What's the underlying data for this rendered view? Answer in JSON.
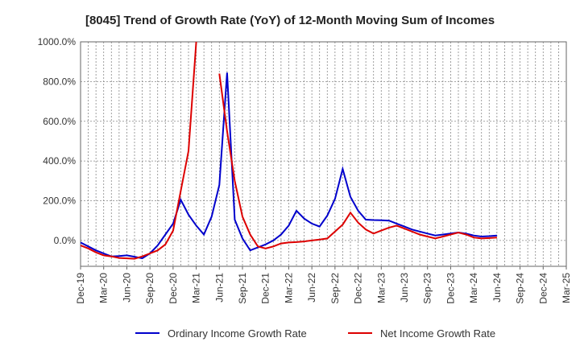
{
  "chart_data": {
    "type": "line",
    "title": "[8045]  Trend of Growth Rate (YoY) of 12-Month Moving Sum of Incomes",
    "xlabel": "",
    "ylabel": "",
    "ylim": [
      -130,
      1000
    ],
    "y_ticks": [
      0,
      200,
      400,
      600,
      800,
      1000
    ],
    "y_tick_labels": [
      "0.0%",
      "200.0%",
      "400.0%",
      "600.0%",
      "800.0%",
      "1000.0%"
    ],
    "x_tick_labels": [
      "Dec-19",
      "Mar-20",
      "Jun-20",
      "Sep-20",
      "Dec-20",
      "Mar-21",
      "Jun-21",
      "Sep-21",
      "Dec-21",
      "Mar-22",
      "Jun-22",
      "Sep-22",
      "Dec-22",
      "Mar-23",
      "Jun-23",
      "Sep-23",
      "Dec-23",
      "Mar-24",
      "Jun-24",
      "Sep-24",
      "Dec-24",
      "Mar-25"
    ],
    "grid": true,
    "legend_position": "bottom",
    "series": [
      {
        "name": "Ordinary Income Growth Rate",
        "color": "#0000cc",
        "points": [
          [
            0,
            -10
          ],
          [
            1,
            -30
          ],
          [
            2,
            -50
          ],
          [
            3,
            -65
          ],
          [
            4,
            -80
          ],
          [
            5,
            -78
          ],
          [
            6,
            -75
          ],
          [
            7,
            -82
          ],
          [
            8,
            -90
          ],
          [
            9,
            -65
          ],
          [
            10,
            -25
          ],
          [
            11,
            30
          ],
          [
            12,
            85
          ],
          [
            13,
            205
          ],
          [
            14,
            130
          ],
          [
            15,
            75
          ],
          [
            16,
            30
          ],
          [
            17,
            120
          ],
          [
            18,
            280
          ],
          [
            19,
            845
          ],
          [
            20,
            105
          ],
          [
            21,
            10
          ],
          [
            22,
            -50
          ],
          [
            23,
            -35
          ],
          [
            24,
            -20
          ],
          [
            25,
            0
          ],
          [
            26,
            30
          ],
          [
            27,
            75
          ],
          [
            28,
            150
          ],
          [
            29,
            110
          ],
          [
            30,
            85
          ],
          [
            31,
            70
          ],
          [
            32,
            125
          ],
          [
            33,
            210
          ],
          [
            34,
            360
          ],
          [
            35,
            220
          ],
          [
            36,
            150
          ],
          [
            37,
            105
          ],
          [
            38,
            103
          ],
          [
            39,
            102
          ],
          [
            40,
            100
          ],
          [
            41,
            85
          ],
          [
            42,
            70
          ],
          [
            43,
            55
          ],
          [
            44,
            45
          ],
          [
            45,
            35
          ],
          [
            46,
            25
          ],
          [
            47,
            30
          ],
          [
            48,
            35
          ],
          [
            49,
            40
          ],
          [
            50,
            35
          ],
          [
            51,
            25
          ],
          [
            52,
            20
          ],
          [
            53,
            22
          ],
          [
            54,
            25
          ]
        ]
      },
      {
        "name": "Net Income Growth Rate",
        "color": "#dd0000",
        "points": [
          [
            0,
            -25
          ],
          [
            1,
            -40
          ],
          [
            2,
            -60
          ],
          [
            3,
            -75
          ],
          [
            4,
            -80
          ],
          [
            5,
            -88
          ],
          [
            6,
            -90
          ],
          [
            7,
            -92
          ],
          [
            8,
            -80
          ],
          [
            9,
            -65
          ],
          [
            10,
            -50
          ],
          [
            11,
            -20
          ],
          [
            12,
            50
          ],
          [
            13,
            250
          ],
          [
            14,
            450
          ],
          [
            15,
            1000
          ]
        ],
        "segments": [
          [
            [
              15,
              1000
            ]
          ],
          [
            [
              18,
              840
            ],
            [
              19,
              550
            ],
            [
              20,
              300
            ],
            [
              21,
              120
            ],
            [
              22,
              30
            ],
            [
              23,
              -30
            ],
            [
              24,
              -40
            ],
            [
              25,
              -30
            ],
            [
              26,
              -15
            ],
            [
              27,
              -10
            ],
            [
              28,
              -8
            ],
            [
              29,
              -5
            ],
            [
              30,
              0
            ],
            [
              31,
              5
            ],
            [
              32,
              10
            ],
            [
              33,
              45
            ],
            [
              34,
              80
            ],
            [
              35,
              140
            ],
            [
              36,
              90
            ],
            [
              37,
              55
            ],
            [
              38,
              35
            ],
            [
              39,
              50
            ],
            [
              40,
              65
            ],
            [
              41,
              75
            ],
            [
              42,
              60
            ],
            [
              43,
              45
            ],
            [
              44,
              30
            ],
            [
              45,
              20
            ],
            [
              46,
              10
            ],
            [
              47,
              20
            ],
            [
              48,
              30
            ],
            [
              49,
              40
            ],
            [
              50,
              30
            ],
            [
              51,
              15
            ],
            [
              52,
              10
            ],
            [
              53,
              12
            ],
            [
              54,
              15
            ]
          ]
        ]
      }
    ]
  }
}
